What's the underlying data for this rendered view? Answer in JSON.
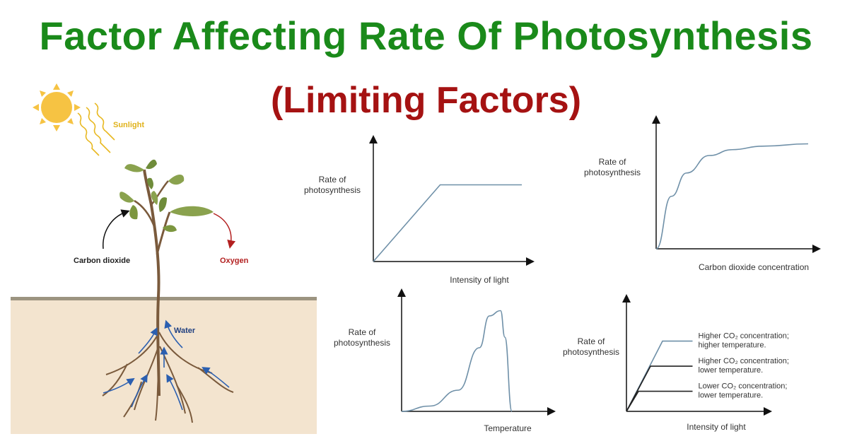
{
  "title": "Factor Affecting Rate Of Photosynthesis",
  "subtitle": "(Limiting Factors)",
  "plant": {
    "sunlight": "Sunlight",
    "carbon_dioxide": "Carbon dioxide",
    "oxygen": "Oxygen",
    "water": "Water"
  },
  "colors": {
    "title": "#1a8a1a",
    "subtitle": "#a51212",
    "curve": "#6f90a8",
    "soil": "#f3e4cf",
    "sun": "#f6c343"
  },
  "chart_data": [
    {
      "type": "line",
      "ylabel_lines": [
        "Rate of",
        "photosynthesis"
      ],
      "xlabel": "Intensity of light",
      "series": [
        {
          "x": [
            0,
            0.45,
            1
          ],
          "y": [
            0,
            0.7,
            0.7
          ]
        }
      ]
    },
    {
      "type": "line",
      "ylabel_lines": [
        "Rate of",
        "photosynthesis"
      ],
      "xlabel": "Carbon dioxide concentration",
      "series": [
        {
          "x": [
            0,
            0.1,
            0.2,
            0.35,
            0.5,
            0.7,
            1
          ],
          "y": [
            0,
            0.45,
            0.65,
            0.8,
            0.85,
            0.88,
            0.9
          ]
        }
      ]
    },
    {
      "type": "line",
      "ylabel_lines": [
        "Rate of",
        "photosynthesis"
      ],
      "xlabel": "Temperature",
      "series": [
        {
          "x": [
            0,
            0.2,
            0.4,
            0.55,
            0.62,
            0.7,
            0.73,
            0.78
          ],
          "y": [
            0,
            0.05,
            0.2,
            0.6,
            0.9,
            0.95,
            0.7,
            0
          ]
        }
      ]
    },
    {
      "type": "line",
      "ylabel_lines": [
        "Rate of",
        "photosynthesis"
      ],
      "xlabel": "Intensity of light",
      "series": [
        {
          "name_lines": [
            "Higher CO₂ concentration;",
            "higher temperature."
          ],
          "x": [
            0,
            0.3,
            0.55
          ],
          "y": [
            0,
            0.7,
            0.7
          ]
        },
        {
          "name_lines": [
            "Higher CO₂ concentration;",
            "lower temperature."
          ],
          "x": [
            0,
            0.2,
            0.55
          ],
          "y": [
            0,
            0.45,
            0.45
          ]
        },
        {
          "name_lines": [
            "Lower CO₂ concentration;",
            "lower temperature."
          ],
          "x": [
            0,
            0.1,
            0.55
          ],
          "y": [
            0,
            0.2,
            0.2
          ]
        }
      ]
    }
  ]
}
